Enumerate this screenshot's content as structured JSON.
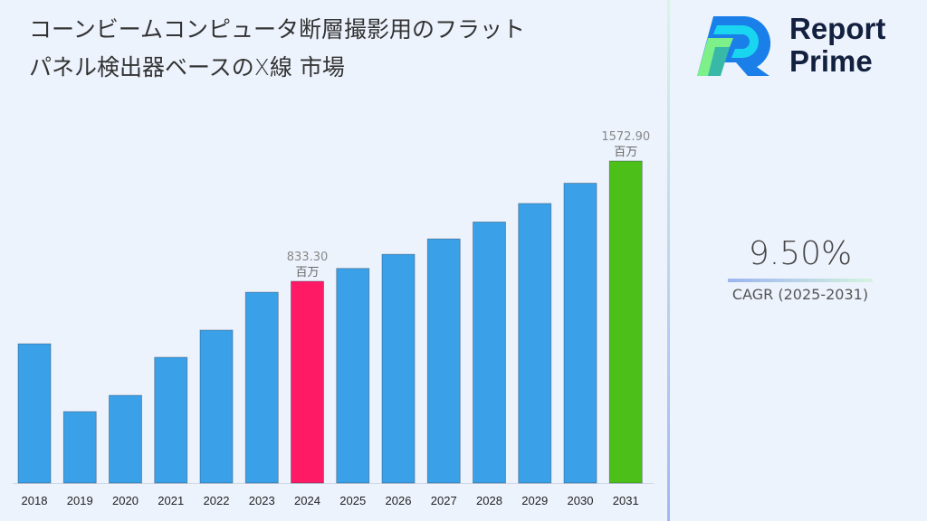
{
  "title": "コーンビームコンピュータ断層撮影用のフラットパネル検出器ベースのX線 市場",
  "logo": {
    "line1": "Report",
    "line2": "Prime"
  },
  "cagr": {
    "value": "9.50%",
    "label": "CAGR (2025-2031)"
  },
  "colors": {
    "default_bar": "#3aa0e8",
    "highlight_2024": "#ff1a66",
    "highlight_2031": "#4cbf18"
  },
  "chart_data": {
    "type": "bar",
    "categories": [
      "2018",
      "2019",
      "2020",
      "2021",
      "2022",
      "2023",
      "2024",
      "2025",
      "2026",
      "2027",
      "2028",
      "2029",
      "2030",
      "2031"
    ],
    "values": [
      449,
      32,
      132,
      366,
      533,
      766,
      833.3,
      912.5,
      999.2,
      1094.1,
      1198.0,
      1311.9,
      1436.5,
      1572.9
    ],
    "data_labels": [
      {
        "category": "2024",
        "value": "833.30",
        "unit": "百万"
      },
      {
        "category": "2031",
        "value": "1572.90",
        "unit": "百万"
      }
    ],
    "title": "コーンビームコンピュータ断層撮影用のフラットパネル検出器ベースのX線 市場",
    "xlabel": "",
    "ylabel": "",
    "ylim": [
      -407,
      2563
    ],
    "grid": false
  }
}
